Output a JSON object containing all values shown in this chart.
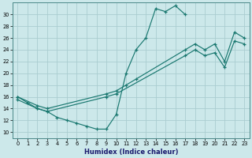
{
  "xlabel": "Humidex (Indice chaleur)",
  "bg_color": "#cce8ea",
  "grid_color": "#aacdd0",
  "line_color": "#1a7870",
  "xlim": [
    -0.5,
    23.5
  ],
  "ylim": [
    9,
    32
  ],
  "xticks": [
    0,
    1,
    2,
    3,
    4,
    5,
    6,
    7,
    8,
    9,
    10,
    11,
    12,
    13,
    14,
    15,
    16,
    17,
    18,
    19,
    20,
    21,
    22,
    23
  ],
  "yticks": [
    10,
    12,
    14,
    16,
    18,
    20,
    22,
    24,
    26,
    28,
    30
  ],
  "line1_x": [
    0,
    1,
    2,
    3,
    4,
    5,
    6,
    7,
    8,
    9,
    10,
    11,
    12,
    13,
    14,
    15,
    16,
    17
  ],
  "line1_y": [
    16,
    15,
    14,
    13.5,
    12.5,
    12,
    11.5,
    11,
    10.5,
    10.5,
    13,
    20,
    24,
    26,
    31,
    30.5,
    31.5,
    30
  ],
  "line2_x": [
    0,
    2,
    3,
    9,
    10,
    11,
    12,
    17,
    18,
    19,
    20,
    21,
    22,
    23
  ],
  "line2_y": [
    16,
    14.5,
    14,
    16.5,
    17,
    18,
    19,
    24,
    25,
    24,
    25,
    22,
    27,
    26
  ],
  "line3_x": [
    0,
    2,
    3,
    9,
    10,
    17,
    18,
    19,
    20,
    21,
    22,
    23
  ],
  "line3_y": [
    15.5,
    14,
    13.5,
    16,
    16.5,
    23,
    24,
    23,
    23.5,
    21,
    25.5,
    25
  ]
}
